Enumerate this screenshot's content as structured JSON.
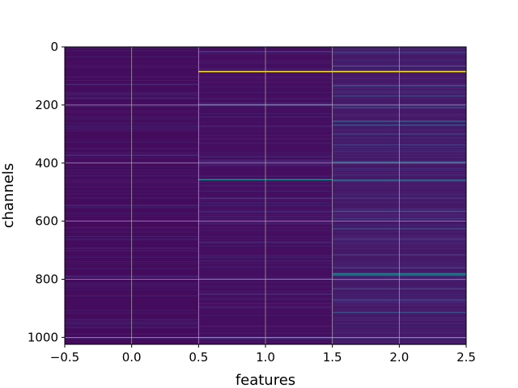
{
  "chart_data": {
    "type": "heatmap",
    "title": "",
    "xlabel": "features",
    "ylabel": "channels",
    "xlim": [
      -0.5,
      2.5
    ],
    "ylim": [
      1024,
      0
    ],
    "x_ticks": [
      "−0.5",
      "0.0",
      "0.5",
      "1.0",
      "1.5",
      "2.0",
      "2.5"
    ],
    "y_ticks": [
      "0",
      "200",
      "400",
      "600",
      "800",
      "1000"
    ],
    "grid": true,
    "colormap": "viridis",
    "n_channels": 1024,
    "columns": [
      {
        "feature": 0,
        "base_value": 0.03,
        "highlights": [
          {
            "channel": 128,
            "value": 0.12
          },
          {
            "channel": 175,
            "value": 0.1
          },
          {
            "channel": 372,
            "value": 0.14
          },
          {
            "channel": 545,
            "value": 0.1
          },
          {
            "channel": 790,
            "value": 0.12
          },
          {
            "channel": 1000,
            "value": 0.1
          }
        ]
      },
      {
        "feature": 1,
        "base_value": 0.04,
        "highlights": [
          {
            "channel": 15,
            "value": 0.18
          },
          {
            "channel": 84,
            "value": 1.0
          },
          {
            "channel": 198,
            "value": 0.28
          },
          {
            "channel": 393,
            "value": 0.14
          },
          {
            "channel": 456,
            "value": 0.48
          },
          {
            "channel": 520,
            "value": 0.16
          },
          {
            "channel": 567,
            "value": 0.12
          },
          {
            "channel": 672,
            "value": 0.12
          },
          {
            "channel": 850,
            "value": 0.14
          },
          {
            "channel": 1000,
            "value": 0.2
          }
        ]
      },
      {
        "feature": 2,
        "base_value": 0.07,
        "highlights": [
          {
            "channel": 18,
            "value": 0.18
          },
          {
            "channel": 65,
            "value": 0.26
          },
          {
            "channel": 84,
            "value": 1.0
          },
          {
            "channel": 132,
            "value": 0.24
          },
          {
            "channel": 168,
            "value": 0.2
          },
          {
            "channel": 208,
            "value": 0.22
          },
          {
            "channel": 255,
            "value": 0.3
          },
          {
            "channel": 268,
            "value": 0.24
          },
          {
            "channel": 300,
            "value": 0.16
          },
          {
            "channel": 335,
            "value": 0.16
          },
          {
            "channel": 395,
            "value": 0.3
          },
          {
            "channel": 458,
            "value": 0.4
          },
          {
            "channel": 520,
            "value": 0.16
          },
          {
            "channel": 565,
            "value": 0.28
          },
          {
            "channel": 590,
            "value": 0.18
          },
          {
            "channel": 625,
            "value": 0.22
          },
          {
            "channel": 660,
            "value": 0.18
          },
          {
            "channel": 715,
            "value": 0.18
          },
          {
            "channel": 760,
            "value": 0.2
          },
          {
            "channel": 780,
            "value": 0.42
          },
          {
            "channel": 785,
            "value": 0.34
          },
          {
            "channel": 832,
            "value": 0.22
          },
          {
            "channel": 870,
            "value": 0.2
          },
          {
            "channel": 913,
            "value": 0.24
          },
          {
            "channel": 1000,
            "value": 0.24
          }
        ]
      }
    ]
  }
}
